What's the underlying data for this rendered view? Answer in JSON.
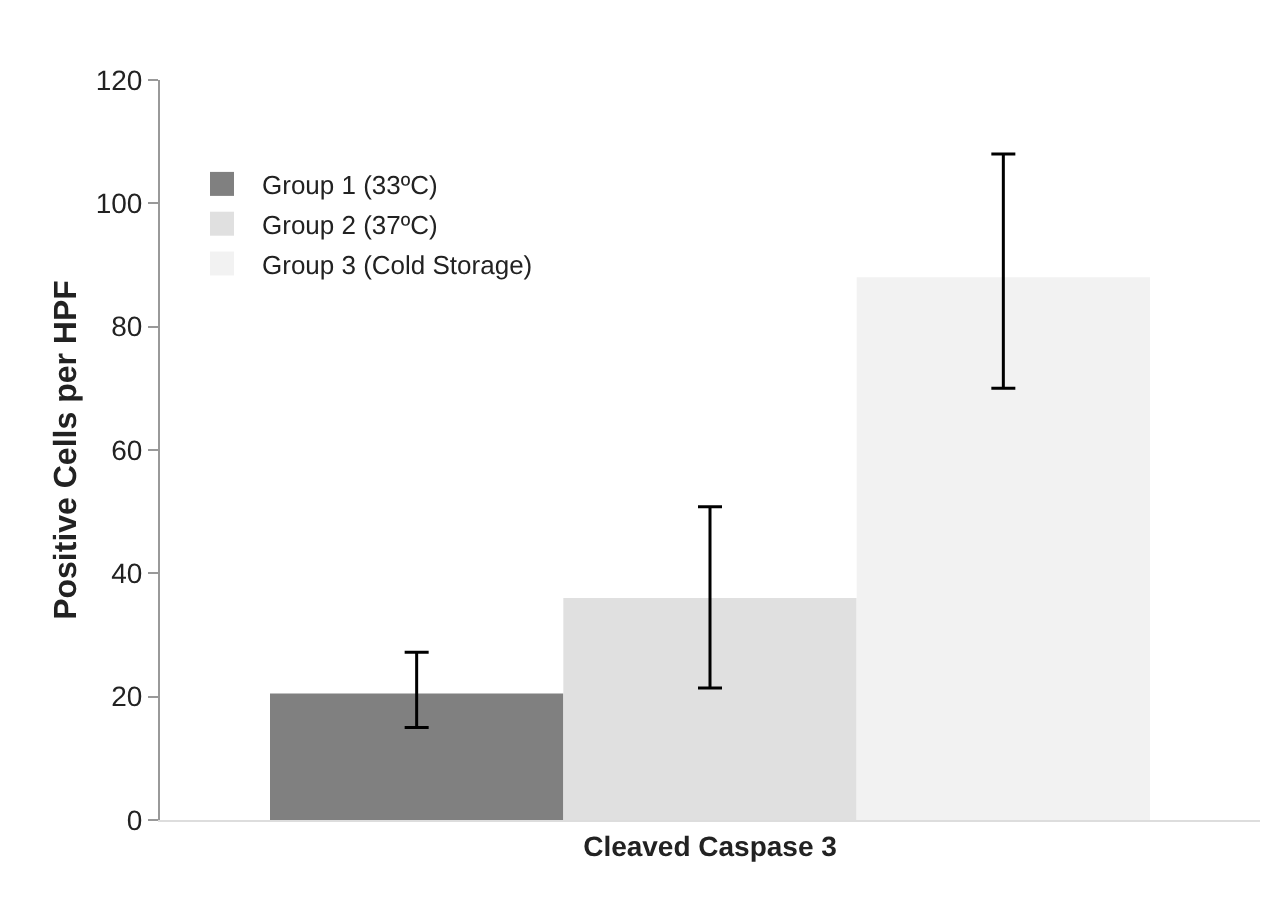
{
  "chart_data": {
    "type": "bar",
    "ylabel": "Positive Cells per HPF",
    "categories": [
      "Cleaved Caspase 3"
    ],
    "series": [
      {
        "name": "Group 1 (33ºC)",
        "color": "#808080",
        "values": [
          20.5
        ],
        "errors": [
          [
            15,
            27.2
          ]
        ]
      },
      {
        "name": "Group 2 (37ºC)",
        "color": "#e0e0e0",
        "values": [
          36
        ],
        "errors": [
          [
            21.4,
            50.8
          ]
        ]
      },
      {
        "name": "Group 3 (Cold Storage)",
        "color": "#f2f2f2",
        "values": [
          88
        ],
        "errors": [
          [
            70,
            108
          ]
        ]
      }
    ],
    "ylim": [
      0,
      120
    ],
    "yticks": [
      0,
      20,
      40,
      60,
      80,
      100,
      120
    ],
    "grid": false,
    "legend": "top left"
  }
}
